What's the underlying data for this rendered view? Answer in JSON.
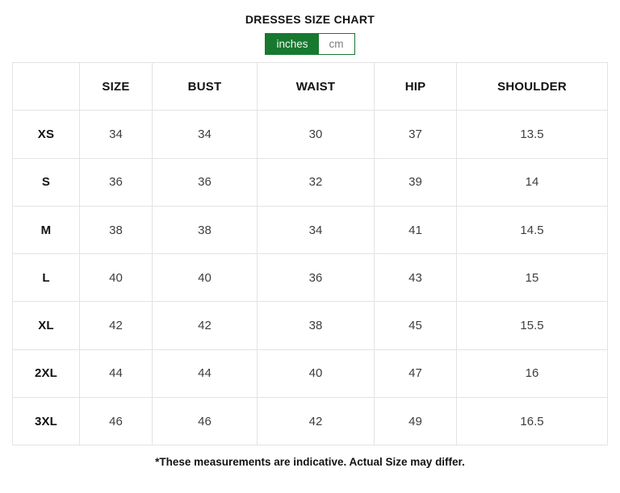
{
  "page": {
    "title": "DRESSES SIZE CHART",
    "footer_note": "*These measurements are indicative. Actual Size may differ."
  },
  "unit_toggle": {
    "options": [
      {
        "label": "inches",
        "selected": true
      },
      {
        "label": "cm",
        "selected": false
      }
    ]
  },
  "colors": {
    "accent_green": "#17792f",
    "table_border": "#e3e3e3",
    "value_text": "#3d3d3d",
    "unselected_toggle_text": "#7d7d7d"
  },
  "size_chart": {
    "unit": "inches",
    "columns": [
      "",
      "SIZE",
      "BUST",
      "WAIST",
      "HIP",
      "SHOULDER"
    ],
    "rows": [
      {
        "label": "XS",
        "values": [
          "34",
          "34",
          "30",
          "37",
          "13.5"
        ]
      },
      {
        "label": "S",
        "values": [
          "36",
          "36",
          "32",
          "39",
          "14"
        ]
      },
      {
        "label": "M",
        "values": [
          "38",
          "38",
          "34",
          "41",
          "14.5"
        ]
      },
      {
        "label": "L",
        "values": [
          "40",
          "40",
          "36",
          "43",
          "15"
        ]
      },
      {
        "label": "XL",
        "values": [
          "42",
          "42",
          "38",
          "45",
          "15.5"
        ]
      },
      {
        "label": "2XL",
        "values": [
          "44",
          "44",
          "40",
          "47",
          "16"
        ]
      },
      {
        "label": "3XL",
        "values": [
          "46",
          "46",
          "42",
          "49",
          "16.5"
        ]
      }
    ]
  }
}
